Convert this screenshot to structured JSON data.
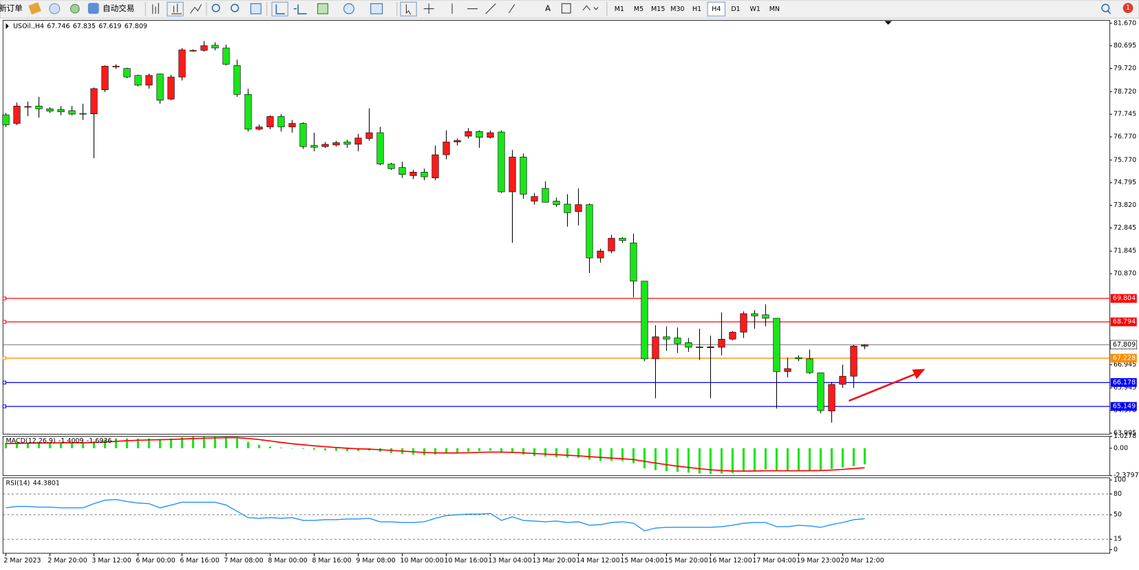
{
  "toolbar": {
    "new_order": "新订单",
    "auto_trading": "自动交易",
    "text_tool": "A",
    "timeframes": [
      "M1",
      "M5",
      "M15",
      "M30",
      "H1",
      "H4",
      "D1",
      "W1",
      "MN"
    ],
    "active_timeframe": 5,
    "notifications": 1
  },
  "chart_data": [
    {
      "type": "candlestick",
      "title": "USOil.,H4",
      "categories": [
        "2 Mar 2023",
        null,
        null,
        null,
        "2 Mar 20:00",
        null,
        null,
        null,
        "3 Mar 12:00",
        null,
        null,
        null,
        "6 Mar 00:00",
        null,
        null,
        null,
        "6 Mar 16:00",
        null,
        null,
        null,
        "7 Mar 08:00",
        null,
        null,
        null,
        "8 Mar 00:00",
        null,
        null,
        null,
        "8 Mar 16:00",
        null,
        null,
        null,
        "9 Mar 08:00",
        null,
        null,
        null,
        "10 Mar 00:00",
        null,
        null,
        null,
        "10 Mar 16:00",
        null,
        null,
        null,
        "13 Mar 04:00",
        null,
        null,
        null,
        "13 Mar 20:00",
        null,
        null,
        null,
        "14 Mar 12:00",
        null,
        null,
        null,
        "15 Mar 04:00",
        null,
        null,
        null,
        "15 Mar 20:00",
        null,
        null,
        null,
        "16 Mar 12:00",
        null,
        null,
        null,
        "17 Mar 04:00",
        null,
        null,
        null,
        "19 Mar 23:00",
        null,
        null,
        null,
        "20 Mar 12:00",
        null,
        null
      ],
      "open": [
        77.72,
        77.35,
        78.05,
        78.1,
        77.98,
        77.95,
        77.9,
        77.78,
        77.76,
        78.8,
        79.8,
        79.72,
        79.42,
        79.0,
        79.48,
        78.4,
        79.35,
        80.5,
        80.5,
        80.72,
        80.6,
        79.85,
        78.6,
        77.1,
        77.2,
        77.65,
        77.2,
        77.35,
        76.4,
        76.35,
        76.42,
        76.55,
        76.45,
        76.7,
        76.95,
        75.6,
        75.45,
        75.1,
        75.25,
        75.0,
        76.0,
        76.55,
        76.8,
        77.0,
        76.75,
        76.98,
        74.4,
        75.9,
        74.0,
        74.55,
        74.0,
        73.87,
        73.55,
        73.85,
        71.55,
        71.85,
        72.4,
        72.2,
        70.55,
        67.2,
        68.15,
        68.1,
        67.9,
        67.72,
        67.68,
        67.7,
        68.05,
        68.35,
        69.15,
        69.1,
        68.95,
        66.65,
        67.25,
        67.2,
        66.6,
        64.95,
        66.1,
        66.45,
        67.746
      ],
      "high": [
        77.8,
        78.25,
        78.29,
        78.5,
        78.05,
        78.1,
        78.1,
        78.2,
        78.9,
        79.85,
        79.9,
        79.75,
        79.45,
        79.5,
        79.5,
        79.45,
        80.6,
        80.55,
        80.9,
        80.85,
        80.75,
        80.1,
        78.85,
        77.3,
        77.7,
        77.75,
        77.5,
        77.4,
        76.95,
        76.55,
        76.6,
        76.65,
        76.9,
        78.0,
        77.2,
        75.65,
        75.7,
        75.35,
        75.4,
        76.4,
        77.05,
        76.7,
        77.15,
        77.05,
        77.05,
        77.05,
        76.2,
        76.05,
        74.35,
        74.85,
        74.15,
        74.3,
        74.55,
        73.9,
        71.95,
        72.55,
        72.45,
        72.6,
        70.55,
        68.65,
        68.6,
        68.55,
        68.1,
        68.5,
        68.2,
        69.2,
        68.4,
        69.25,
        69.3,
        69.55,
        68.95,
        67.25,
        67.35,
        67.6,
        66.6,
        66.2,
        66.95,
        67.8,
        67.835
      ],
      "low": [
        77.2,
        77.28,
        77.66,
        77.6,
        77.8,
        77.7,
        77.7,
        77.5,
        75.85,
        78.7,
        79.7,
        79.3,
        78.95,
        78.85,
        78.2,
        78.35,
        79.2,
        80.45,
        80.45,
        80.5,
        79.85,
        78.5,
        77.0,
        77.05,
        77.1,
        77.0,
        76.95,
        76.25,
        76.15,
        76.3,
        76.35,
        76.3,
        76.15,
        76.6,
        75.55,
        75.35,
        75.0,
        74.95,
        74.9,
        74.9,
        75.8,
        76.4,
        76.7,
        76.3,
        76.7,
        74.35,
        72.2,
        74.1,
        73.85,
        73.95,
        73.75,
        72.9,
        72.95,
        70.9,
        71.35,
        71.75,
        72.2,
        69.85,
        67.1,
        65.5,
        67.55,
        67.45,
        67.5,
        67.15,
        65.5,
        67.35,
        68.0,
        68.1,
        68.5,
        68.6,
        65.05,
        66.4,
        67.1,
        66.55,
        64.85,
        64.45,
        65.95,
        65.95,
        67.619
      ],
      "close": [
        77.29,
        78.1,
        78.08,
        77.98,
        77.88,
        77.85,
        77.75,
        77.76,
        78.85,
        79.82,
        79.82,
        79.35,
        79.0,
        79.42,
        78.35,
        79.35,
        80.52,
        80.5,
        80.7,
        80.6,
        79.9,
        78.6,
        77.1,
        77.2,
        77.65,
        77.2,
        77.35,
        76.35,
        76.32,
        76.45,
        76.52,
        76.45,
        76.72,
        76.95,
        75.6,
        75.4,
        75.15,
        75.25,
        75.05,
        76.0,
        76.55,
        76.62,
        77.0,
        76.75,
        76.95,
        74.4,
        75.9,
        74.3,
        74.2,
        73.95,
        73.85,
        73.5,
        73.85,
        71.55,
        71.85,
        72.4,
        72.3,
        70.55,
        67.2,
        68.15,
        68.05,
        67.85,
        67.7,
        67.68,
        67.72,
        68.05,
        68.35,
        69.15,
        69.05,
        68.95,
        66.65,
        66.78,
        67.2,
        66.6,
        64.97,
        66.1,
        66.45,
        67.75,
        67.809
      ],
      "up_color": "#ff1a1a",
      "down_color": "#19e619",
      "ylim": [
        63.95,
        81.795
      ],
      "yticks": [
        {
          "value": 81.67,
          "label": "81.670"
        },
        80.695,
        {
          "value": 79.72,
          "label": "79.720"
        },
        {
          "value": 78.72,
          "label": "78.720"
        },
        77.745,
        {
          "value": 76.77,
          "label": "76.770"
        },
        {
          "value": 75.77,
          "label": "75.770"
        },
        74.795,
        {
          "value": 73.82,
          "label": "73.820"
        },
        72.845,
        71.845,
        {
          "value": 70.87,
          "label": "70.870"
        },
        66.945,
        65.945,
        {
          "value": 64.97,
          "label": "64.970"
        },
        63.995
      ],
      "levels": [
        {
          "value": 69.804,
          "color": "#ff0000"
        },
        {
          "value": 68.794,
          "color": "#ff0000"
        },
        {
          "value": 67.228,
          "color": "#ff8c00"
        },
        {
          "value": 66.178,
          "color": "#0000ff"
        },
        {
          "value": 65.149,
          "color": "#0000ff"
        }
      ]
    },
    {
      "type": "macd",
      "title": "MACD(12,26,9)",
      "main": {
        "color": "#19e619",
        "values": [
          0.45,
          0.5,
          0.5,
          0.52,
          0.5,
          0.5,
          0.48,
          0.45,
          0.6,
          0.75,
          0.85,
          0.85,
          0.83,
          0.85,
          0.8,
          0.85,
          0.95,
          1.0,
          1.02,
          1.02,
          0.98,
          0.85,
          0.55,
          0.3,
          0.15,
          0.05,
          -0.02,
          -0.05,
          -0.12,
          -0.18,
          -0.22,
          -0.25,
          -0.25,
          -0.2,
          -0.32,
          -0.42,
          -0.5,
          -0.56,
          -0.6,
          -0.55,
          -0.45,
          -0.4,
          -0.3,
          -0.25,
          -0.2,
          -0.4,
          -0.42,
          -0.55,
          -0.68,
          -0.72,
          -0.78,
          -0.82,
          -0.85,
          -1.0,
          -1.1,
          -1.1,
          -1.1,
          -1.3,
          -1.75,
          -1.9,
          -2.0,
          -2.05,
          -2.12,
          -2.2,
          -2.22,
          -2.2,
          -2.15,
          -2.05,
          -1.95,
          -1.85,
          -1.95,
          -1.98,
          -1.95,
          -1.9,
          -1.9,
          -1.8,
          -1.68,
          -1.55,
          -1.4009
        ]
      },
      "signal": {
        "color": "#ff0000",
        "values": [
          0.4,
          0.42,
          0.44,
          0.45,
          0.46,
          0.47,
          0.47,
          0.47,
          0.49,
          0.54,
          0.6,
          0.65,
          0.69,
          0.72,
          0.74,
          0.76,
          0.8,
          0.84,
          0.87,
          0.9,
          0.92,
          0.92,
          0.85,
          0.75,
          0.63,
          0.5,
          0.39,
          0.3,
          0.21,
          0.13,
          0.06,
          0.0,
          -0.05,
          -0.08,
          -0.13,
          -0.19,
          -0.25,
          -0.31,
          -0.37,
          -0.4,
          -0.41,
          -0.41,
          -0.39,
          -0.36,
          -0.33,
          -0.34,
          -0.36,
          -0.4,
          -0.46,
          -0.51,
          -0.56,
          -0.61,
          -0.66,
          -0.73,
          -0.8,
          -0.86,
          -0.91,
          -0.99,
          -1.14,
          -1.29,
          -1.43,
          -1.56,
          -1.67,
          -1.78,
          -1.87,
          -1.94,
          -1.98,
          -1.99,
          -1.98,
          -1.96,
          -1.96,
          -1.96,
          -1.96,
          -1.95,
          -1.94,
          -1.9,
          -1.84,
          -1.77,
          -1.6936
        ]
      },
      "ylim": [
        -2.3797,
        1.0278
      ],
      "yticks": [
        1.0278,
        {
          "value": 0,
          "label": "0.00"
        },
        -2.3797
      ]
    },
    {
      "type": "line",
      "title": "RSI(14)",
      "color": "#1e90ff",
      "values": [
        60,
        62,
        62,
        61,
        61,
        60,
        60,
        60,
        66,
        71,
        72,
        69,
        67,
        66,
        60,
        64,
        68,
        68,
        68,
        68,
        64,
        55,
        46,
        45,
        46,
        45,
        46,
        42,
        42,
        43,
        43,
        44,
        44,
        45,
        40,
        40,
        39,
        39,
        40,
        45,
        49,
        50,
        51,
        51,
        52,
        42,
        47,
        42,
        41,
        40,
        41,
        39,
        40,
        35,
        36,
        39,
        40,
        38,
        27,
        31,
        32,
        32,
        32,
        32,
        32,
        33,
        35,
        38,
        39,
        39,
        33,
        33,
        35,
        34,
        32,
        36,
        39,
        43,
        44.3801
      ],
      "ylim": [
        0,
        100
      ],
      "yticks": [
        100,
        80,
        50,
        15,
        0
      ],
      "grid": "dashed"
    }
  ]
}
